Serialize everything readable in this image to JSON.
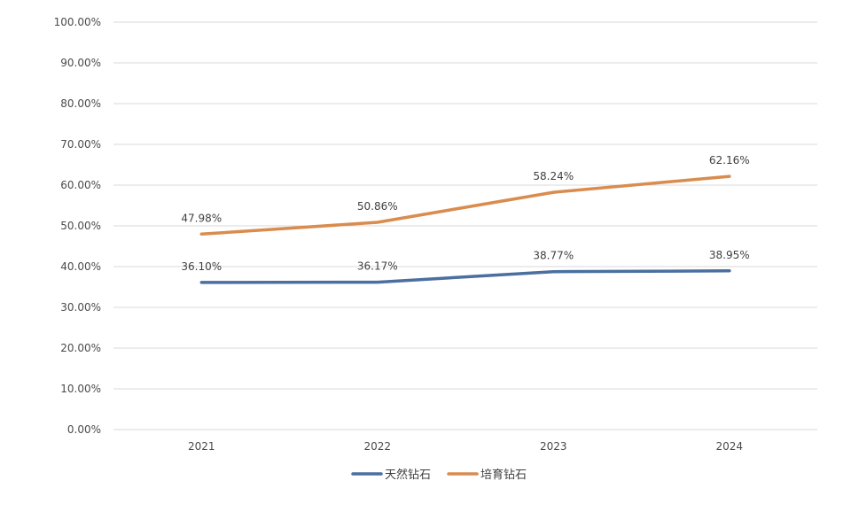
{
  "chart_data": {
    "type": "line",
    "title": "",
    "xlabel": "",
    "ylabel": "",
    "categories": [
      "2021",
      "2022",
      "2023",
      "2024"
    ],
    "ylim": [
      0,
      100
    ],
    "yticks": [
      "0.00%",
      "10.00%",
      "20.00%",
      "30.00%",
      "40.00%",
      "50.00%",
      "60.00%",
      "70.00%",
      "80.00%",
      "90.00%",
      "100.00%"
    ],
    "grid": true,
    "legend_position": "bottom",
    "series": [
      {
        "name": "天然钻石",
        "color": "#4a6fa0",
        "values": [
          36.1,
          36.17,
          38.77,
          38.95
        ],
        "labels": [
          "36.10%",
          "36.17%",
          "38.77%",
          "38.95%"
        ]
      },
      {
        "name": "培育钻石",
        "color": "#d98c4e",
        "values": [
          47.98,
          50.86,
          58.24,
          62.16
        ],
        "labels": [
          "47.98%",
          "50.86%",
          "58.24%",
          "62.16%"
        ]
      }
    ]
  }
}
